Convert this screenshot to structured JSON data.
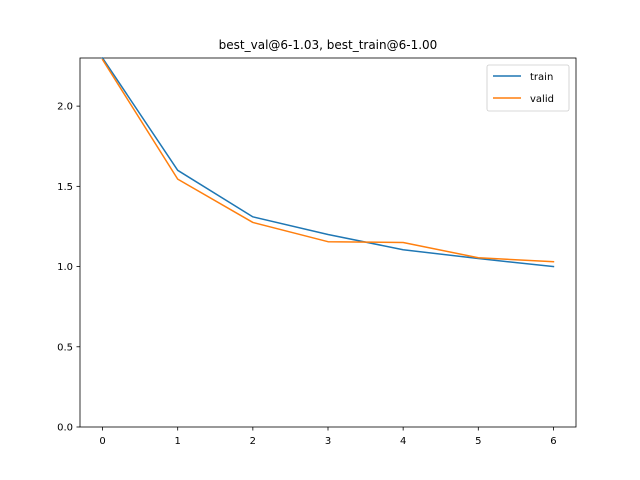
{
  "chart_data": {
    "type": "line",
    "title": "best_val@6-1.03, best_train@6-1.00",
    "xlabel": "",
    "ylabel": "",
    "x": [
      0,
      1,
      2,
      3,
      4,
      5,
      6
    ],
    "xticks": [
      "0",
      "1",
      "2",
      "3",
      "4",
      "5",
      "6"
    ],
    "yticks": [
      "0.0",
      "0.5",
      "1.0",
      "1.5",
      "2.0"
    ],
    "xlim": [
      -0.3,
      6.3
    ],
    "ylim": [
      0.0,
      2.3
    ],
    "grid": false,
    "legend_position": "top-right",
    "series": [
      {
        "name": "train",
        "color": "#1f77b4",
        "values": [
          2.3,
          1.6,
          1.31,
          1.2,
          1.105,
          1.05,
          1.0
        ]
      },
      {
        "name": "valid",
        "color": "#ff7f0e",
        "values": [
          2.29,
          1.545,
          1.275,
          1.155,
          1.15,
          1.055,
          1.03
        ]
      }
    ]
  }
}
